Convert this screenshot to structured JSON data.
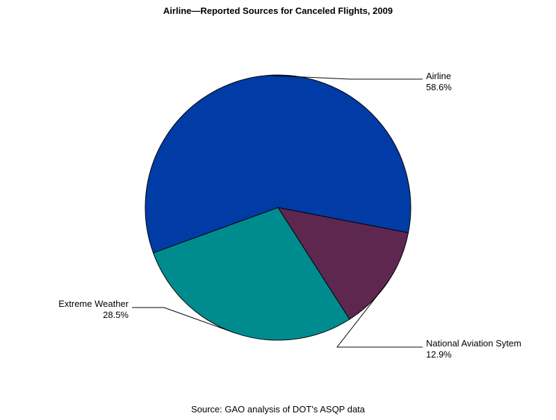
{
  "chart_data": {
    "type": "pie",
    "title": "Airline—Reported Sources for Canceled Flights, 2009",
    "slices": [
      {
        "label": "Airline",
        "value": 58.6,
        "value_label": "58.6%",
        "color": "#003BA6"
      },
      {
        "label": "National Aviation Sytem",
        "value": 12.9,
        "value_label": "12.9%",
        "color": "#5E2750"
      },
      {
        "label": "Extreme Weather",
        "value": 28.5,
        "value_label": "28.5%",
        "color": "#008B8F"
      }
    ],
    "legend": "none",
    "source": "Source: GAO analysis of DOT's ASQP data"
  }
}
